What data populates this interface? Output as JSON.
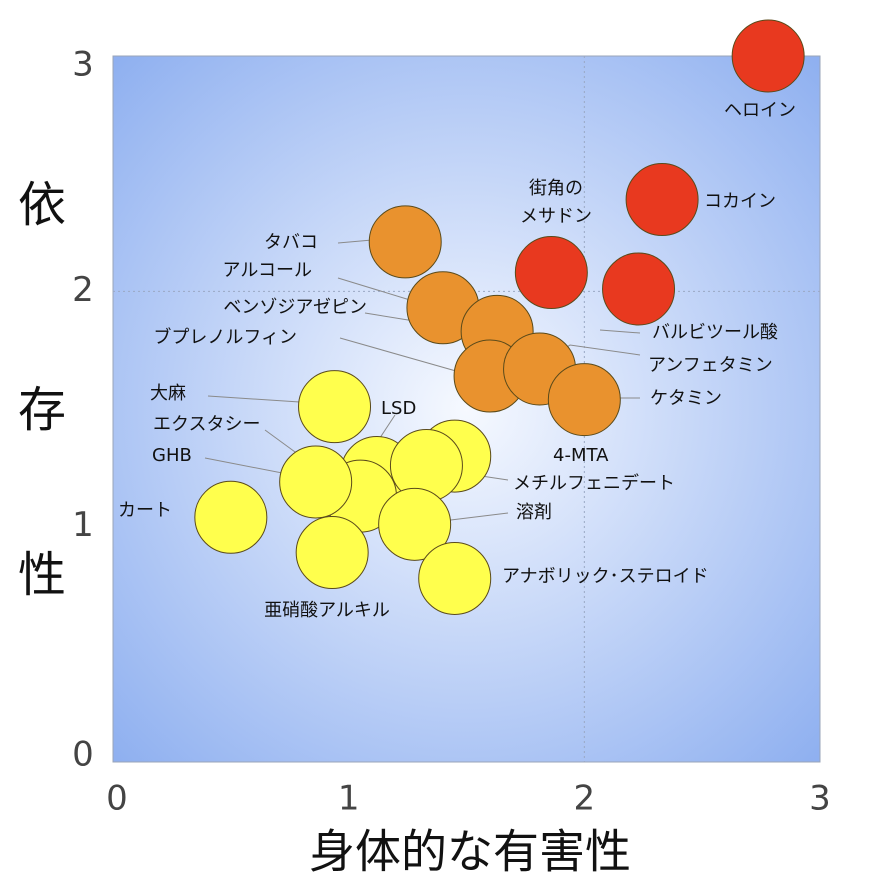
{
  "chart_data": {
    "type": "scatter",
    "title": "",
    "xlabel": "身体的な有害性",
    "ylabel": "依存性",
    "xlim": [
      0,
      3
    ],
    "ylim": [
      0,
      3
    ],
    "x_ticks": [
      "0",
      "1",
      "2",
      "3"
    ],
    "y_ticks": [
      "0",
      "1",
      "2",
      "3"
    ],
    "grid": false,
    "reference_lines": {
      "x": 2,
      "y": 2
    },
    "points": [
      {
        "label": "ヘロイン",
        "x": 2.78,
        "y": 3.0,
        "color": "#e8391f"
      },
      {
        "label": "コカイン",
        "x": 2.33,
        "y": 2.39,
        "color": "#e8391f"
      },
      {
        "label": "街角の\nメサドン",
        "x": 1.86,
        "y": 2.08,
        "color": "#e8391f"
      },
      {
        "label": "バルビツール酸",
        "x": 2.23,
        "y": 2.01,
        "color": "#e8391f"
      },
      {
        "label": "タバコ",
        "x": 1.24,
        "y": 2.21,
        "color": "#e9922e"
      },
      {
        "label": "アルコール",
        "x": 1.4,
        "y": 1.93,
        "color": "#e9922e"
      },
      {
        "label": "ベンゾジアゼピン",
        "x": 1.63,
        "y": 1.83,
        "color": "#e9922e"
      },
      {
        "label": "ブプレノルフィン",
        "x": 1.6,
        "y": 1.64,
        "color": "#e9922e"
      },
      {
        "label": "アンフェタミン",
        "x": 1.81,
        "y": 1.67,
        "color": "#e9922e"
      },
      {
        "label": "ケタミン",
        "x": 2.0,
        "y": 1.54,
        "color": "#e9922e"
      },
      {
        "label": "大麻",
        "x": 0.94,
        "y": 1.51,
        "color": "#ffff4d"
      },
      {
        "label": "LSD",
        "x": 1.12,
        "y": 1.23,
        "color": "#ffff4d"
      },
      {
        "label": "4-MTA",
        "x": 1.45,
        "y": 1.3,
        "color": "#ffff4d"
      },
      {
        "label": "エクスタシー",
        "x": 1.05,
        "y": 1.13,
        "color": "#ffff4d"
      },
      {
        "label": "GHB",
        "x": 0.86,
        "y": 1.19,
        "color": "#ffff4d"
      },
      {
        "label": "メチルフェニデート",
        "x": 1.33,
        "y": 1.26,
        "color": "#ffff4d"
      },
      {
        "label": "溶剤",
        "x": 1.28,
        "y": 1.01,
        "color": "#ffff4d"
      },
      {
        "label": "カート",
        "x": 0.5,
        "y": 1.04,
        "color": "#ffff4d"
      },
      {
        "label": "亜硝酸アルキル",
        "x": 0.93,
        "y": 0.89,
        "color": "#ffff4d"
      },
      {
        "label": "アナボリック･ステロイド",
        "x": 1.45,
        "y": 0.78,
        "color": "#ffff4d"
      }
    ]
  },
  "colors": {
    "plot_center": "#f6f9ff",
    "plot_edge": "#8fb0f0",
    "outline": "#5a4a1a",
    "leader": "#8a8a8a",
    "tick_text": "#444444",
    "label_text": "#111111"
  }
}
